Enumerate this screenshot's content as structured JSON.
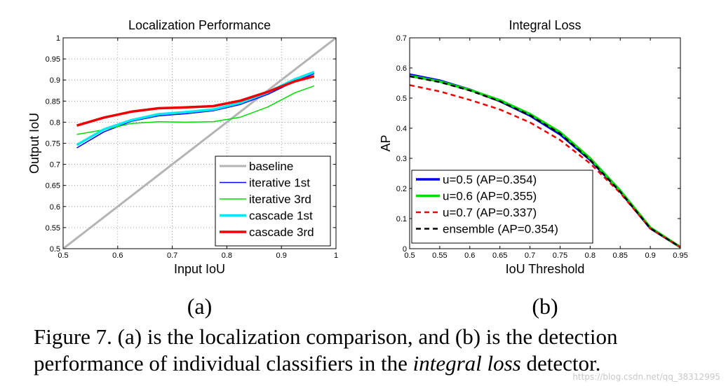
{
  "chart_data": [
    {
      "type": "line",
      "title": "Localization Performance",
      "xlabel": "Input IoU",
      "ylabel": "Output IoU",
      "xlim": [
        0.5,
        1
      ],
      "ylim": [
        0.5,
        1
      ],
      "xticks": [
        "0.5",
        "0.6",
        "0.7",
        "0.8",
        "0.9",
        "1"
      ],
      "yticks": [
        "0.5",
        "0.55",
        "0.6",
        "0.65",
        "0.7",
        "0.75",
        "0.8",
        "0.85",
        "0.9",
        "0.95",
        "1"
      ],
      "grid": true,
      "legend": "bottom-right",
      "series": [
        {
          "name": "baseline",
          "color": "#b4b4b4",
          "width": 3,
          "dash": "",
          "x": [
            0.5,
            1.0
          ],
          "y": [
            0.5,
            1.0
          ]
        },
        {
          "name": "iterative 1st",
          "color": "#0000ff",
          "width": 1.5,
          "dash": "",
          "x": [
            0.525,
            0.575,
            0.625,
            0.675,
            0.725,
            0.775,
            0.825,
            0.875,
            0.925,
            0.96
          ],
          "y": [
            0.739,
            0.777,
            0.802,
            0.815,
            0.82,
            0.827,
            0.842,
            0.866,
            0.897,
            0.915
          ]
        },
        {
          "name": "iterative 3rd",
          "color": "#00dd00",
          "width": 1.5,
          "dash": "",
          "x": [
            0.525,
            0.575,
            0.625,
            0.675,
            0.725,
            0.775,
            0.825,
            0.875,
            0.925,
            0.96
          ],
          "y": [
            0.771,
            0.782,
            0.797,
            0.801,
            0.8,
            0.801,
            0.812,
            0.836,
            0.87,
            0.886
          ]
        },
        {
          "name": "cascade 1st",
          "color": "#00e8f0",
          "width": 3.5,
          "dash": "",
          "x": [
            0.525,
            0.575,
            0.625,
            0.675,
            0.725,
            0.775,
            0.825,
            0.875,
            0.925,
            0.96
          ],
          "y": [
            0.746,
            0.783,
            0.805,
            0.819,
            0.824,
            0.83,
            0.846,
            0.871,
            0.902,
            0.919
          ]
        },
        {
          "name": "cascade 3rd",
          "color": "#ee0000",
          "width": 3.5,
          "dash": "",
          "x": [
            0.525,
            0.575,
            0.625,
            0.675,
            0.725,
            0.775,
            0.825,
            0.875,
            0.925,
            0.96
          ],
          "y": [
            0.792,
            0.811,
            0.825,
            0.833,
            0.835,
            0.838,
            0.851,
            0.872,
            0.897,
            0.909
          ]
        }
      ]
    },
    {
      "type": "line",
      "title": "Integral Loss",
      "xlabel": "IoU Threshold",
      "ylabel": "AP",
      "xlim": [
        0.5,
        0.95
      ],
      "ylim": [
        0,
        0.7
      ],
      "xticks": [
        "0.5",
        "0.55",
        "0.6",
        "0.65",
        "0.7",
        "0.75",
        "0.8",
        "0.85",
        "0.9",
        "0.95"
      ],
      "yticks": [
        "0",
        "0.1",
        "0.2",
        "0.3",
        "0.4",
        "0.5",
        "0.6",
        "0.7"
      ],
      "grid": false,
      "legend": "bottom-left",
      "series": [
        {
          "name": "u=0.5 (AP=0.354)",
          "color": "#0000ee",
          "width": 3.5,
          "dash": "",
          "x": [
            0.5,
            0.55,
            0.6,
            0.65,
            0.7,
            0.75,
            0.8,
            0.85,
            0.9,
            0.95
          ],
          "y": [
            0.578,
            0.558,
            0.528,
            0.49,
            0.442,
            0.38,
            0.295,
            0.19,
            0.068,
            0.005
          ]
        },
        {
          "name": "u=0.6 (AP=0.355)",
          "color": "#00dd00",
          "width": 3.5,
          "dash": "",
          "x": [
            0.5,
            0.55,
            0.6,
            0.65,
            0.7,
            0.75,
            0.8,
            0.85,
            0.9,
            0.95
          ],
          "y": [
            0.574,
            0.555,
            0.527,
            0.493,
            0.447,
            0.387,
            0.3,
            0.193,
            0.07,
            0.005
          ]
        },
        {
          "name": "u=0.7 (AP=0.337)",
          "color": "#ee0000",
          "width": 2.5,
          "dash": "7,5",
          "x": [
            0.5,
            0.55,
            0.6,
            0.65,
            0.7,
            0.75,
            0.8,
            0.85,
            0.9,
            0.95
          ],
          "y": [
            0.543,
            0.522,
            0.494,
            0.462,
            0.419,
            0.361,
            0.283,
            0.185,
            0.067,
            0.005
          ]
        },
        {
          "name": "ensemble (AP=0.354)",
          "color": "#000000",
          "width": 2.5,
          "dash": "7,5",
          "x": [
            0.5,
            0.55,
            0.6,
            0.65,
            0.7,
            0.75,
            0.8,
            0.85,
            0.9,
            0.95
          ],
          "y": [
            0.572,
            0.553,
            0.525,
            0.489,
            0.443,
            0.382,
            0.295,
            0.189,
            0.068,
            0.005
          ]
        }
      ]
    }
  ],
  "panel_labels": [
    "(a)",
    "(b)"
  ],
  "caption": {
    "line1": "Figure 7. (a) is the localization comparison, and (b) is the detection",
    "line2_pre": "performance of individual classifiers in the ",
    "line2_em": "integral loss",
    "line2_post": " detector."
  },
  "watermark": "https://blog.csdn.net/qq_38312995"
}
